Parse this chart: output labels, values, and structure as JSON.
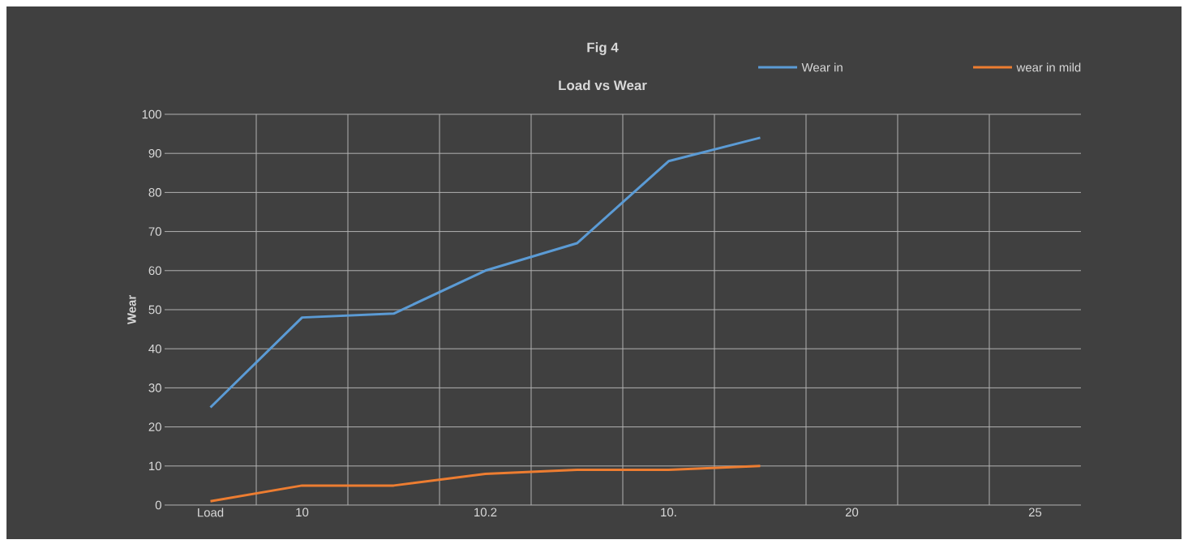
{
  "chart_data": {
    "type": "line",
    "title": "Fig 4",
    "subtitle": "Load vs Wear",
    "ylabel": "Wear",
    "categories": [
      "Load",
      "10",
      null,
      "10.2",
      null,
      "10.",
      null,
      "20",
      null,
      "25"
    ],
    "series": [
      {
        "name": "Wear in",
        "color": "#5b9bd5",
        "values": [
          25,
          48,
          49,
          60,
          67,
          88,
          94,
          null,
          null,
          null
        ]
      },
      {
        "name": "wear in mild",
        "color": "#ed7d31",
        "values": [
          1,
          5,
          5,
          8,
          9,
          9,
          10,
          null,
          null,
          null
        ]
      }
    ],
    "ylim": [
      0,
      100
    ],
    "yticks": [
      0,
      10,
      20,
      30,
      40,
      50,
      60,
      70,
      80,
      90,
      100
    ],
    "grid": true,
    "legend": "top right",
    "marker": "none",
    "line_style": "solid"
  }
}
